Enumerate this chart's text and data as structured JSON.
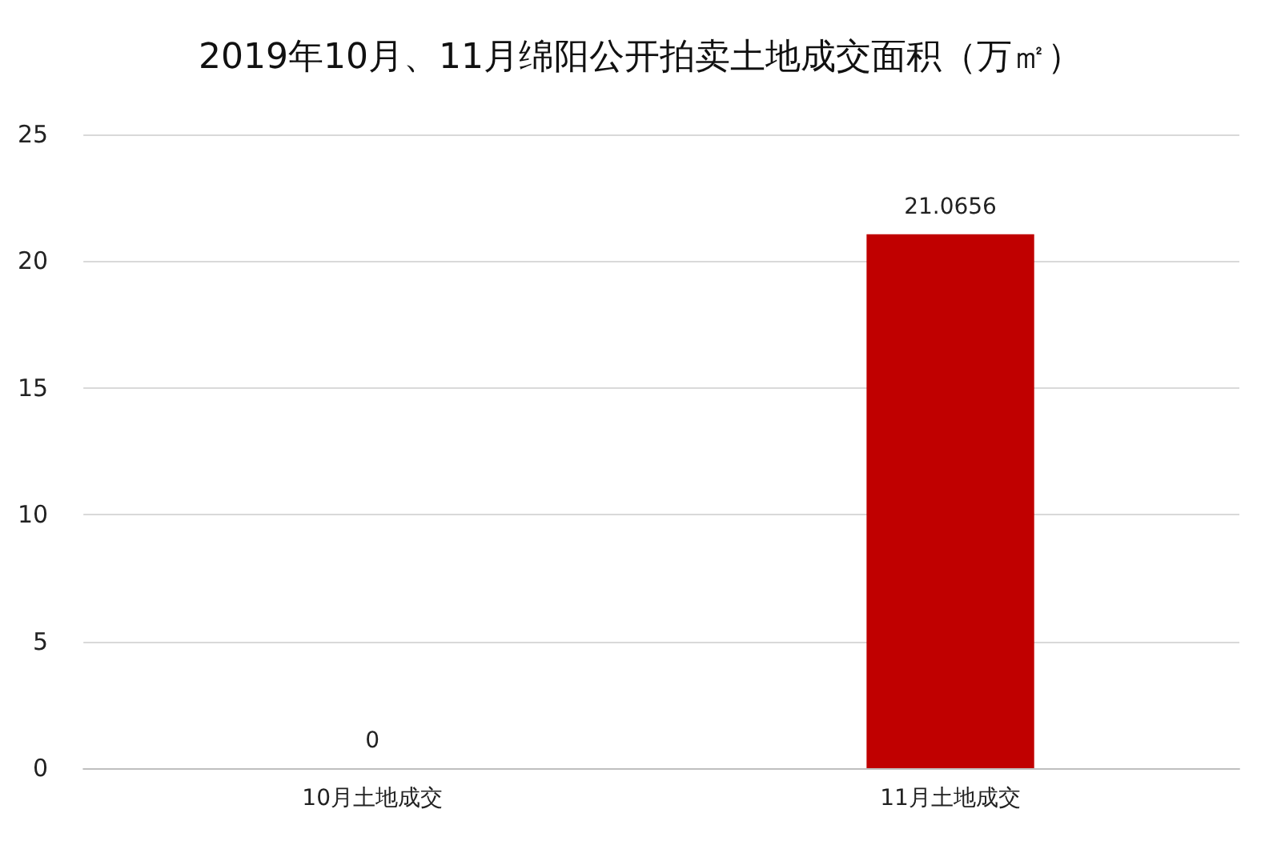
{
  "chart_data": {
    "type": "bar",
    "title": "2019年10月、11月绵阳公开拍卖土地成交面积（万㎡）",
    "categories": [
      "10月土地成交",
      "11月土地成交"
    ],
    "values": [
      0,
      21.0656
    ],
    "color": "#c00000",
    "ylim": [
      0,
      25
    ],
    "yticks": [
      0,
      5,
      10,
      15,
      20,
      25
    ],
    "grid": "y",
    "data_labels": true
  }
}
